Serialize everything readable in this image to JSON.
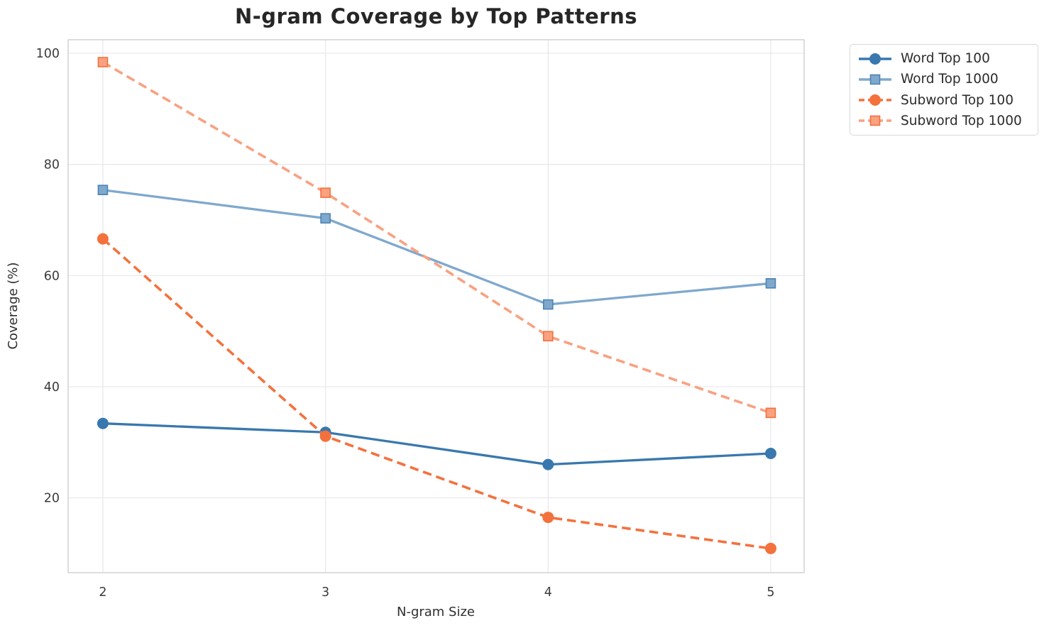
{
  "chart_data": {
    "type": "line",
    "title": "N-gram Coverage by Top Patterns",
    "xlabel": "N-gram Size",
    "ylabel": "Coverage (%)",
    "x": [
      2,
      3,
      4,
      5
    ],
    "xticks": [
      "2",
      "3",
      "4",
      "5"
    ],
    "yticks": [
      "20",
      "40",
      "60",
      "80",
      "100"
    ],
    "ytick_values": [
      20,
      40,
      60,
      80,
      100
    ],
    "xlim": [
      1.844,
      5.15
    ],
    "ylim": [
      6.55,
      102.43
    ],
    "grid": true,
    "legend_position": "outside-upper-right",
    "colors": {
      "grid": "#e9e9ee",
      "spine": "#cccccf",
      "title_text": "#262626",
      "tick_text": "#3b3b3b"
    },
    "series": [
      {
        "name": "Word Top 100",
        "values": [
          33.4,
          31.8,
          26.0,
          28.0
        ],
        "color": "#3878ae",
        "marker_edge": "#3878ae",
        "linestyle": "solid",
        "marker": "circle"
      },
      {
        "name": "Word Top 1000",
        "values": [
          75.4,
          70.3,
          54.8,
          58.6
        ],
        "color": "#7fa8cd",
        "marker_edge": "#4d83b3",
        "linestyle": "solid",
        "marker": "square"
      },
      {
        "name": "Subword Top 100",
        "values": [
          66.6,
          31.1,
          16.5,
          10.9
        ],
        "color": "#f4713c",
        "marker_edge": "#f4713c",
        "linestyle": "dashed",
        "marker": "circle"
      },
      {
        "name": "Subword Top 1000",
        "values": [
          98.4,
          74.9,
          49.1,
          35.3
        ],
        "color": "#f9a181",
        "marker_edge": "#f4713c",
        "linestyle": "dashed",
        "marker": "square"
      }
    ]
  }
}
